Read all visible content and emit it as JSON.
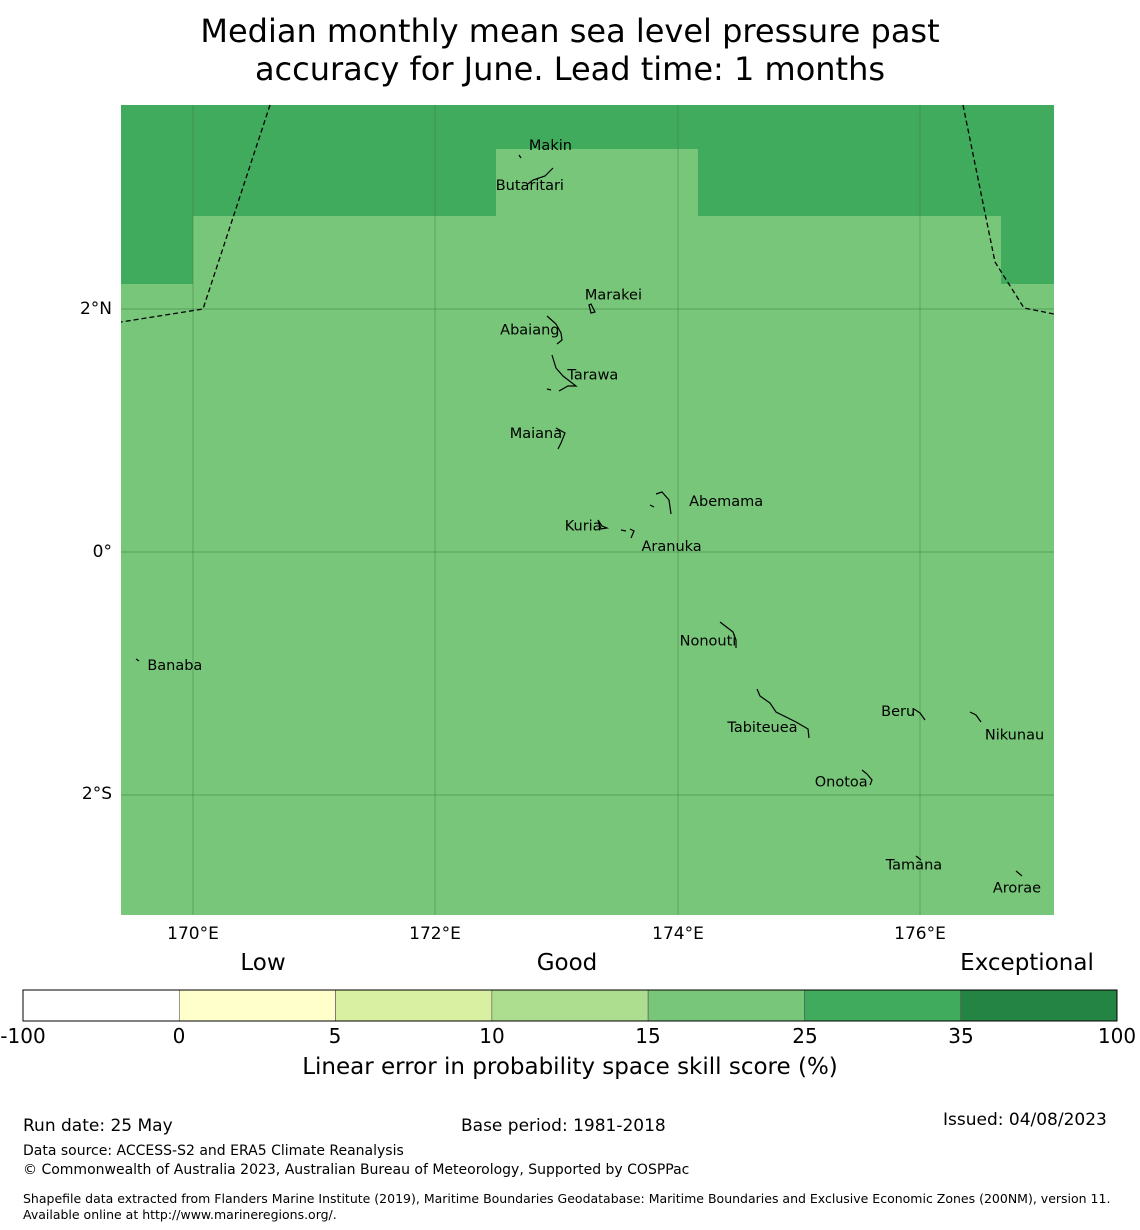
{
  "title": {
    "line1": "Median monthly mean sea level pressure past",
    "line2": "accuracy for June. Lead time: 1 months"
  },
  "map": {
    "lat_labels": [
      "2°N",
      "0°",
      "2°S"
    ],
    "lon_labels": [
      "170°E",
      "172°E",
      "174°E",
      "176°E"
    ],
    "islands": [
      {
        "name": "Makin",
        "lon": 172.95,
        "lat": 3.35
      },
      {
        "name": "Butaritari",
        "lon": 172.78,
        "lat": 3.02
      },
      {
        "name": "Marakei",
        "lon": 173.47,
        "lat": 2.12
      },
      {
        "name": "Abaiang",
        "lon": 172.78,
        "lat": 1.83
      },
      {
        "name": "Tarawa",
        "lon": 173.3,
        "lat": 1.46
      },
      {
        "name": "Maiana",
        "lon": 172.83,
        "lat": 0.98
      },
      {
        "name": "Abemama",
        "lon": 174.4,
        "lat": 0.42
      },
      {
        "name": "Kuria",
        "lon": 173.22,
        "lat": 0.22
      },
      {
        "name": "Aranuka",
        "lon": 173.95,
        "lat": 0.05
      },
      {
        "name": "Nonouti",
        "lon": 174.25,
        "lat": -0.73
      },
      {
        "name": "Banaba",
        "lon": 169.85,
        "lat": -0.93
      },
      {
        "name": "Beru",
        "lon": 175.82,
        "lat": -1.31
      },
      {
        "name": "Tabiteuea",
        "lon": 174.7,
        "lat": -1.44
      },
      {
        "name": "Nikunau",
        "lon": 176.78,
        "lat": -1.5
      },
      {
        "name": "Onotoa",
        "lon": 175.35,
        "lat": -1.89
      },
      {
        "name": "Tamana",
        "lon": 175.95,
        "lat": -2.57
      },
      {
        "name": "Arorae",
        "lon": 176.8,
        "lat": -2.76
      }
    ],
    "colors": {
      "good_high": "#78c679",
      "very_good": "#41ab5d",
      "exceptional": "#238443",
      "boundary": "#000000"
    }
  },
  "legend": {
    "categories": [
      "Low",
      "Good",
      "Exceptional"
    ],
    "ticks": [
      "-100",
      "0",
      "5",
      "10",
      "15",
      "25",
      "35",
      "100"
    ],
    "colors": [
      "#ffffff",
      "#ffffcc",
      "#d9f0a3",
      "#addd8e",
      "#78c679",
      "#41ab5d",
      "#238443"
    ],
    "label": "Linear error in probability space skill score (%)"
  },
  "footer": {
    "run_date": "Run date: 25 May",
    "base_period": "Base period: 1981-2018",
    "issued": "Issued: 04/08/2023",
    "data_source": "Data source: ACCESS-S2 and ERA5 Climate Reanalysis",
    "copyright": "© Commonwealth of Australia 2023, Australian Bureau of Meteorology, Supported by COSPPac",
    "shapefile": "Shapefile data extracted from Flanders Marine Institute (2019), Maritime Boundaries Geodatabase: Maritime Boundaries and Exclusive Economic Zones (200NM), version 11. Available online at http://www.marineregions.org/."
  }
}
